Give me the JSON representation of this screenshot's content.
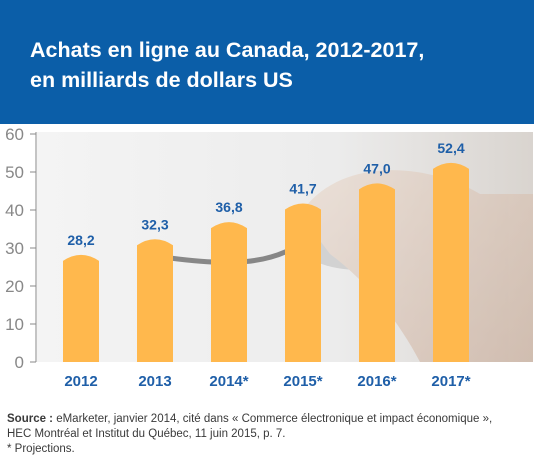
{
  "header": {
    "title_line1": "Achats en ligne au Canada, 2012-2017,",
    "title_line2": "en milliards de dollars US"
  },
  "colors": {
    "header_bg": "#0b5ea8",
    "bar": "#ffb84d",
    "value_label": "#1f5fa8",
    "category_label": "#1f5fa8",
    "axis_tick": "#888888",
    "chart_bg": "#eeeeee"
  },
  "chart_data": {
    "type": "bar",
    "title": "Achats en ligne au Canada, 2012-2017, en milliards de dollars US",
    "categories": [
      "2012",
      "2013",
      "2014*",
      "2015*",
      "2016*",
      "2017*"
    ],
    "values": [
      28.2,
      32.3,
      36.8,
      41.7,
      47.0,
      52.4
    ],
    "value_labels": [
      "28,2",
      "32,3",
      "36,8",
      "41,7",
      "47,0",
      "52,4"
    ],
    "yticks": [
      "0",
      "10",
      "20",
      "30",
      "40",
      "50",
      "60"
    ],
    "ylim": [
      0,
      60
    ],
    "xlabel": "",
    "ylabel": "",
    "grid": false,
    "legend": "none"
  },
  "footer": {
    "source_label": "Source :",
    "source_text": " eMarketer, janvier 2014, cité dans « Commerce électronique et impact économique »,",
    "source_line2": "HEC Montréal et Institut du Québec, 11 juin 2015, p. 7.",
    "note": "* Projections."
  }
}
